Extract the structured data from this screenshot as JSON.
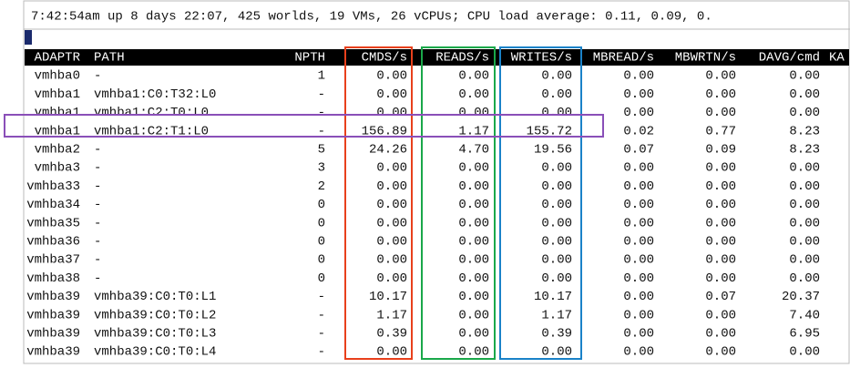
{
  "status": "7:42:54am up 8 days 22:07, 425 worlds, 19 VMs, 26 vCPUs; CPU load average: 0.11, 0.09, 0.",
  "table": {
    "columns": [
      "ADAPTR",
      "PATH",
      "NPTH",
      "CMDS/s",
      "READS/s",
      "WRITES/s",
      "MBREAD/s",
      "MBWRTN/s",
      "DAVG/cmd",
      "KA"
    ],
    "rows": [
      [
        "vmhba0",
        "-",
        "1",
        "0.00",
        "0.00",
        "0.00",
        "0.00",
        "0.00",
        "0.00"
      ],
      [
        "vmhba1",
        "vmhba1:C0:T32:L0",
        "-",
        "0.00",
        "0.00",
        "0.00",
        "0.00",
        "0.00",
        "0.00"
      ],
      [
        "vmhba1",
        "vmhba1:C2:T0:L0",
        "-",
        "0.00",
        "0.00",
        "0.00",
        "0.00",
        "0.00",
        "0.00"
      ],
      [
        "vmhba1",
        "vmhba1:C2:T1:L0",
        "-",
        "156.89",
        "1.17",
        "155.72",
        "0.02",
        "0.77",
        "8.23"
      ],
      [
        "vmhba2",
        "-",
        "5",
        "24.26",
        "4.70",
        "19.56",
        "0.07",
        "0.09",
        "8.23"
      ],
      [
        "vmhba3",
        "-",
        "3",
        "0.00",
        "0.00",
        "0.00",
        "0.00",
        "0.00",
        "0.00"
      ],
      [
        "vmhba33",
        "-",
        "2",
        "0.00",
        "0.00",
        "0.00",
        "0.00",
        "0.00",
        "0.00"
      ],
      [
        "vmhba34",
        "-",
        "0",
        "0.00",
        "0.00",
        "0.00",
        "0.00",
        "0.00",
        "0.00"
      ],
      [
        "vmhba35",
        "-",
        "0",
        "0.00",
        "0.00",
        "0.00",
        "0.00",
        "0.00",
        "0.00"
      ],
      [
        "vmhba36",
        "-",
        "0",
        "0.00",
        "0.00",
        "0.00",
        "0.00",
        "0.00",
        "0.00"
      ],
      [
        "vmhba37",
        "-",
        "0",
        "0.00",
        "0.00",
        "0.00",
        "0.00",
        "0.00",
        "0.00"
      ],
      [
        "vmhba38",
        "-",
        "0",
        "0.00",
        "0.00",
        "0.00",
        "0.00",
        "0.00",
        "0.00"
      ],
      [
        "vmhba39",
        "vmhba39:C0:T0:L1",
        "-",
        "10.17",
        "0.00",
        "10.17",
        "0.00",
        "0.07",
        "20.37"
      ],
      [
        "vmhba39",
        "vmhba39:C0:T0:L2",
        "-",
        "1.17",
        "0.00",
        "1.17",
        "0.00",
        "0.00",
        "7.40"
      ],
      [
        "vmhba39",
        "vmhba39:C0:T0:L3",
        "-",
        "0.39",
        "0.00",
        "0.39",
        "0.00",
        "0.00",
        "6.95"
      ],
      [
        "vmhba39",
        "vmhba39:C0:T0:L4",
        "-",
        "0.00",
        "0.00",
        "0.00",
        "0.00",
        "0.00",
        "0.00"
      ]
    ]
  }
}
